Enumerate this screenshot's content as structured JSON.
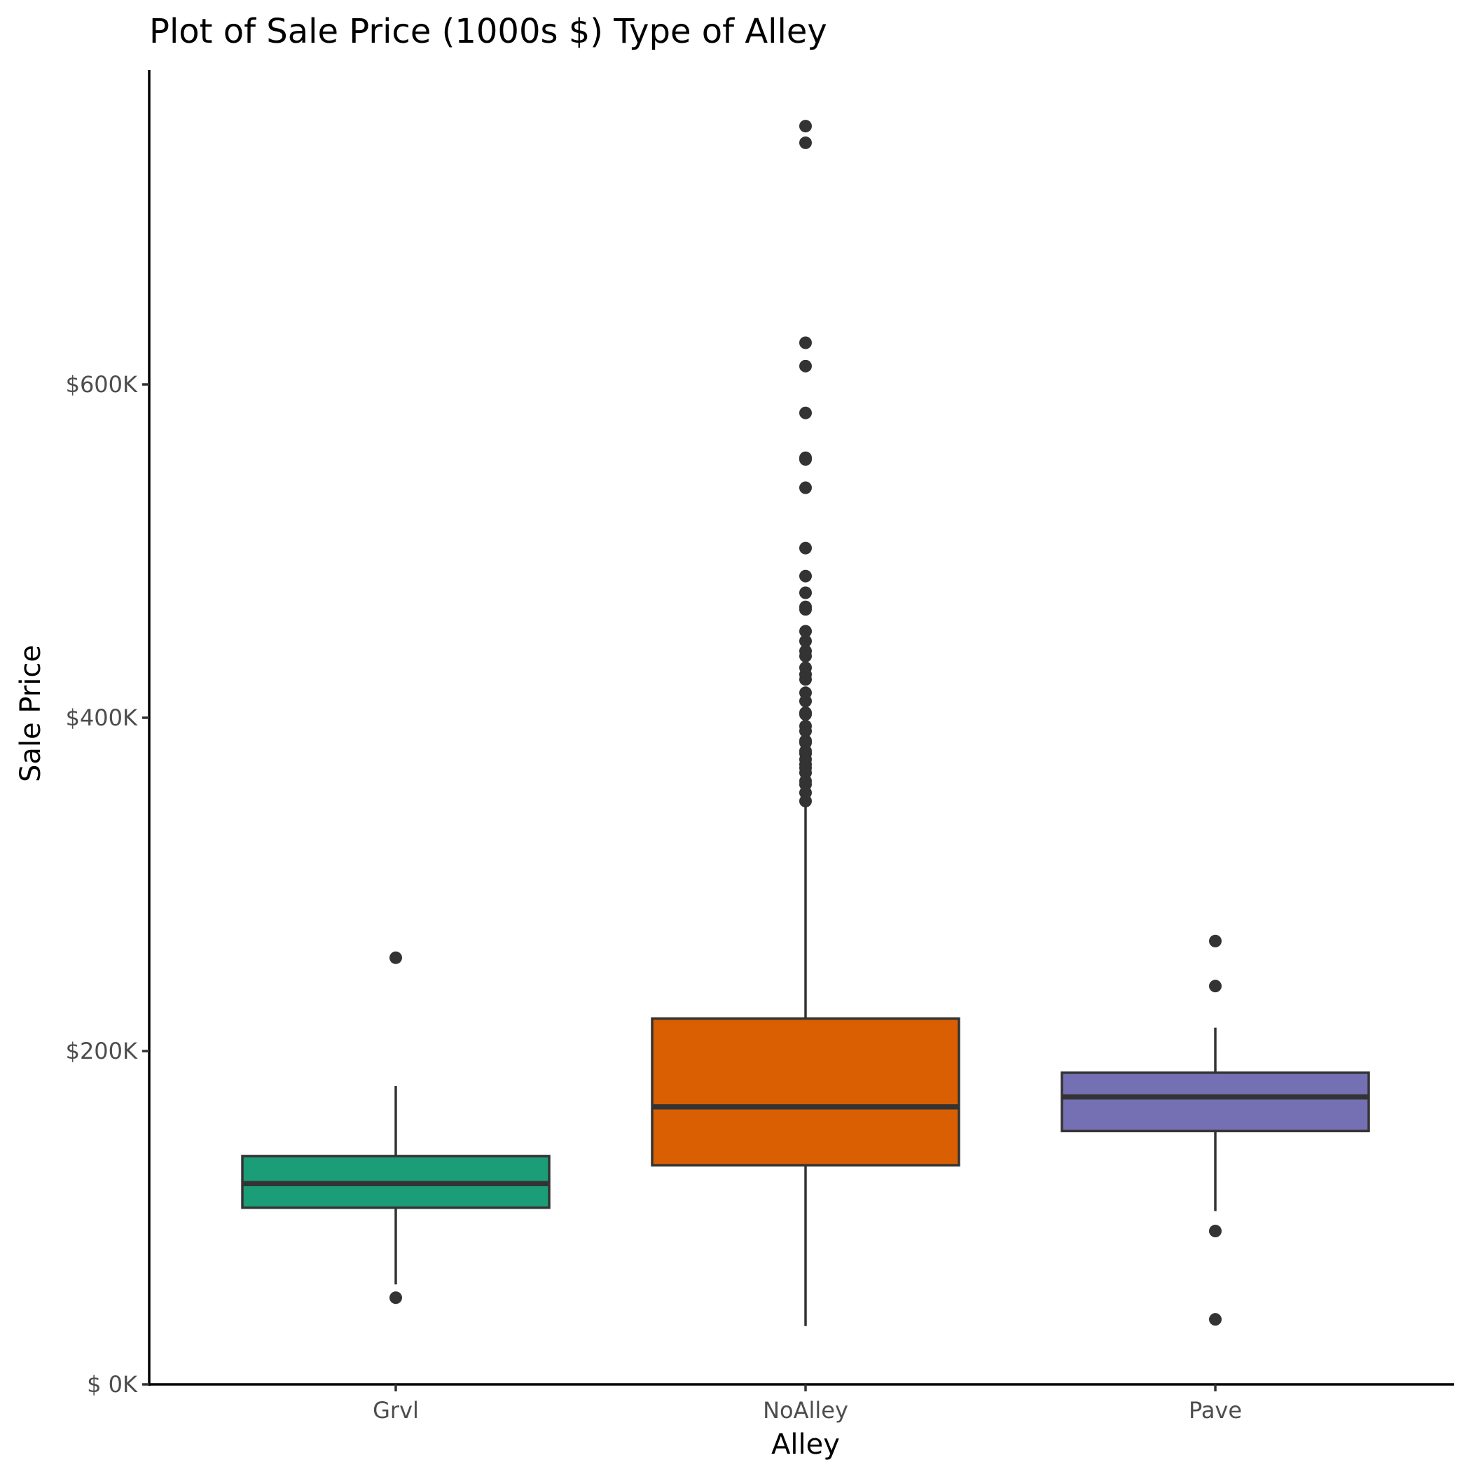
{
  "chart_data": {
    "type": "box",
    "title": "Plot of Sale Price (1000s $) Type of Alley",
    "xlabel": "Alley",
    "ylabel": "Sale Price",
    "ylim": [
      0,
      755000
    ],
    "yticks": [
      {
        "value": 0,
        "label": "$  0K"
      },
      {
        "value": 200000,
        "label": "$200K"
      },
      {
        "value": 400000,
        "label": "$400K"
      },
      {
        "value": 600000,
        "label": "$600K"
      }
    ],
    "grid": false,
    "legend": "none",
    "categories": [
      "Grvl",
      "NoAlley",
      "Pave"
    ],
    "boxes": [
      {
        "category": "Grvl",
        "color": "#1b9e77",
        "whisker_low": 60000,
        "q1": 106000,
        "median": 120500,
        "q3": 137000,
        "whisker_high": 179000,
        "outliers": [
          52000,
          256000
        ]
      },
      {
        "category": "NoAlley",
        "color": "#d95f02",
        "whisker_low": 35000,
        "q1": 131500,
        "median": 166500,
        "q3": 219500,
        "whisker_high": 350000,
        "outliers": [
          745000,
          755000,
          625000,
          611000,
          582900,
          556000,
          555000,
          538000,
          501800,
          485000,
          475000,
          466500,
          465000,
          451900,
          446000,
          440000,
          437000,
          430000,
          426000,
          423000,
          415000,
          410000,
          403000,
          402000,
          395000,
          392000,
          386200,
          385000,
          380000,
          378500,
          375000,
          372000,
          369900,
          367000,
          362000,
          360000,
          355000,
          350000
        ]
      },
      {
        "category": "Pave",
        "color": "#7570b3",
        "whisker_low": 104000,
        "q1": 152000,
        "median": 172500,
        "q3": 187000,
        "whisker_high": 214000,
        "outliers": [
          266000,
          239000,
          92000,
          39000
        ]
      }
    ]
  }
}
